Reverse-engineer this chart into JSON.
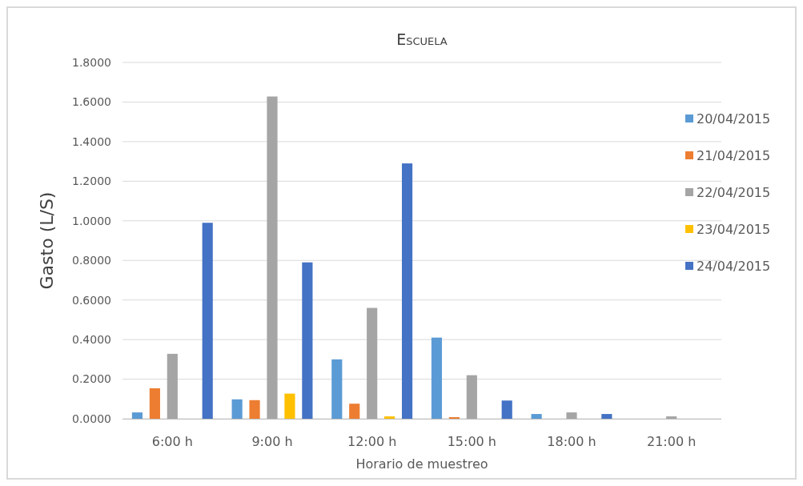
{
  "chart_data": {
    "type": "bar",
    "title": "Escuela",
    "xlabel": "Horario de muestreo",
    "ylabel": "Gasto (L/S)",
    "categories": [
      "6:00 h",
      "9:00 h",
      "12:00 h",
      "15:00 h",
      "18:00 h",
      "21:00 h"
    ],
    "series": [
      {
        "name": "20/04/2015",
        "color": "#5b9bd5",
        "values": [
          0.032,
          0.098,
          0.3,
          0.41,
          0.024,
          0
        ]
      },
      {
        "name": "21/04/2015",
        "color": "#ed7d31",
        "values": [
          0.154,
          0.094,
          0.076,
          0.008,
          0,
          0
        ]
      },
      {
        "name": "22/04/2015",
        "color": "#a5a5a5",
        "values": [
          0.328,
          1.628,
          0.56,
          0.22,
          0.032,
          0.012
        ]
      },
      {
        "name": "23/04/2015",
        "color": "#ffc000",
        "values": [
          0,
          0.127,
          0.012,
          0,
          0,
          0
        ]
      },
      {
        "name": "24/04/2015",
        "color": "#4472c4",
        "values": [
          0.99,
          0.79,
          1.29,
          0.092,
          0.024,
          0
        ]
      }
    ],
    "ylim": [
      0,
      1.8
    ],
    "yticks": [
      {
        "value": 0,
        "label": "0.0000"
      },
      {
        "value": 0.2,
        "label": "0.2000"
      },
      {
        "value": 0.4,
        "label": "0.4000"
      },
      {
        "value": 0.6,
        "label": "0.6000"
      },
      {
        "value": 0.8,
        "label": "0.8000"
      },
      {
        "value": 1,
        "label": "1.0000"
      },
      {
        "value": 1.2,
        "label": "1.2000"
      },
      {
        "value": 1.4,
        "label": "1.4000"
      },
      {
        "value": 1.6,
        "label": "1.6000"
      },
      {
        "value": 1.8,
        "label": "1.8000"
      }
    ],
    "grid": "y",
    "legend": "right"
  }
}
